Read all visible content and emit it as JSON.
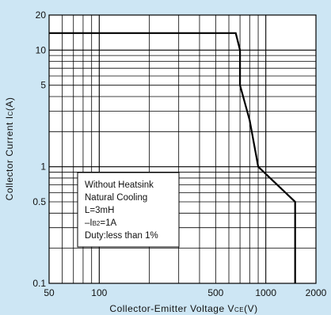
{
  "chart_data": {
    "type": "line",
    "title": "",
    "xlabel_main": "Collector-Emitter Voltage V",
    "xlabel_sub": "CE",
    "xlabel_tail": "(V)",
    "ylabel_main": "Collector Current I",
    "ylabel_sub": "C",
    "ylabel_tail": "(A)",
    "xscale": "log",
    "yscale": "log",
    "xlim": [
      50,
      2000
    ],
    "ylim": [
      0.1,
      20
    ],
    "xticks": [
      {
        "value": 50,
        "label": "50"
      },
      {
        "value": 100,
        "label": "100"
      },
      {
        "value": 500,
        "label": "500"
      },
      {
        "value": 1000,
        "label": "1000"
      },
      {
        "value": 2000,
        "label": "2000"
      }
    ],
    "yticks": [
      {
        "value": 0.1,
        "label": "0.1"
      },
      {
        "value": 0.5,
        "label": "0.5"
      },
      {
        "value": 1,
        "label": "1"
      },
      {
        "value": 5,
        "label": "5"
      },
      {
        "value": 10,
        "label": "10"
      },
      {
        "value": 20,
        "label": "20"
      }
    ],
    "grid": true,
    "series": [
      {
        "x": [
          50,
          660,
          700,
          700,
          800,
          900,
          1500,
          1500
        ],
        "y": [
          14,
          14,
          10,
          5,
          2.5,
          1,
          0.5,
          0.1
        ]
      }
    ],
    "annotation_lines": [
      "Without Heatsink",
      "Natural Cooling",
      "L=3mH",
      "–I",
      "Duty:less than 1%"
    ],
    "annotation_line4_sub": "B2",
    "annotation_line4_tail": "=1A"
  },
  "colors": {
    "background": "#cde6f4",
    "plot_background": "#ffffff",
    "grid": "#000000",
    "curve": "#000000"
  }
}
